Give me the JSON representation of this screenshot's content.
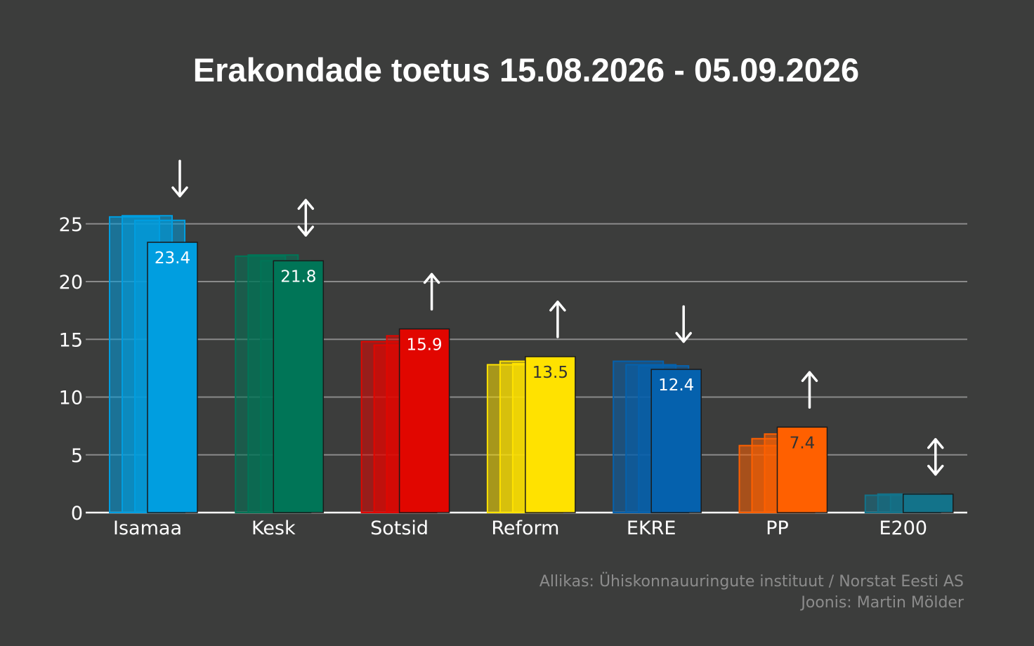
{
  "chart_data": {
    "type": "bar",
    "title": "Erakondade toetus 15.08.2026 - 05.09.2026",
    "xlabel": "",
    "ylabel": "",
    "ylim": [
      0,
      25
    ],
    "yticks": [
      0,
      5,
      10,
      15,
      20,
      25
    ],
    "grid": true,
    "categories": [
      "Isamaa",
      "Kesk",
      "Sotsid",
      "Reform",
      "EKRE",
      "PP",
      "E200"
    ],
    "values": [
      23.4,
      21.8,
      15.9,
      13.5,
      12.4,
      7.4,
      1.6
    ],
    "value_labels": [
      "23.4",
      "21.8",
      "15.9",
      "13.5",
      "12.4",
      "7.4",
      ""
    ],
    "previous_values": [
      [
        25.6,
        25.7,
        25.3
      ],
      [
        22.2,
        22.3,
        21.8
      ],
      [
        14.8,
        14.5,
        15.3
      ],
      [
        12.8,
        13.1,
        12.9
      ],
      [
        13.1,
        12.8,
        12.7
      ],
      [
        5.8,
        6.4,
        6.8
      ],
      [
        1.5,
        1.6,
        1.6
      ]
    ],
    "trends": [
      "down",
      "stable",
      "up",
      "up",
      "down",
      "up",
      "stable"
    ],
    "colors": [
      "#009ee0",
      "#007557",
      "#e10600",
      "#ffe200",
      "#0561ad",
      "#ff6000",
      "#13738a"
    ],
    "label_colors": [
      "#ffffff",
      "#ffffff",
      "#ffffff",
      "#333333",
      "#ffffff",
      "#333333",
      "#ffffff"
    ]
  },
  "credits": {
    "source": "Allikas: Ühiskonnauuringute instituut / Norstat Eesti AS",
    "author": "Joonis: Martin Mölder"
  }
}
